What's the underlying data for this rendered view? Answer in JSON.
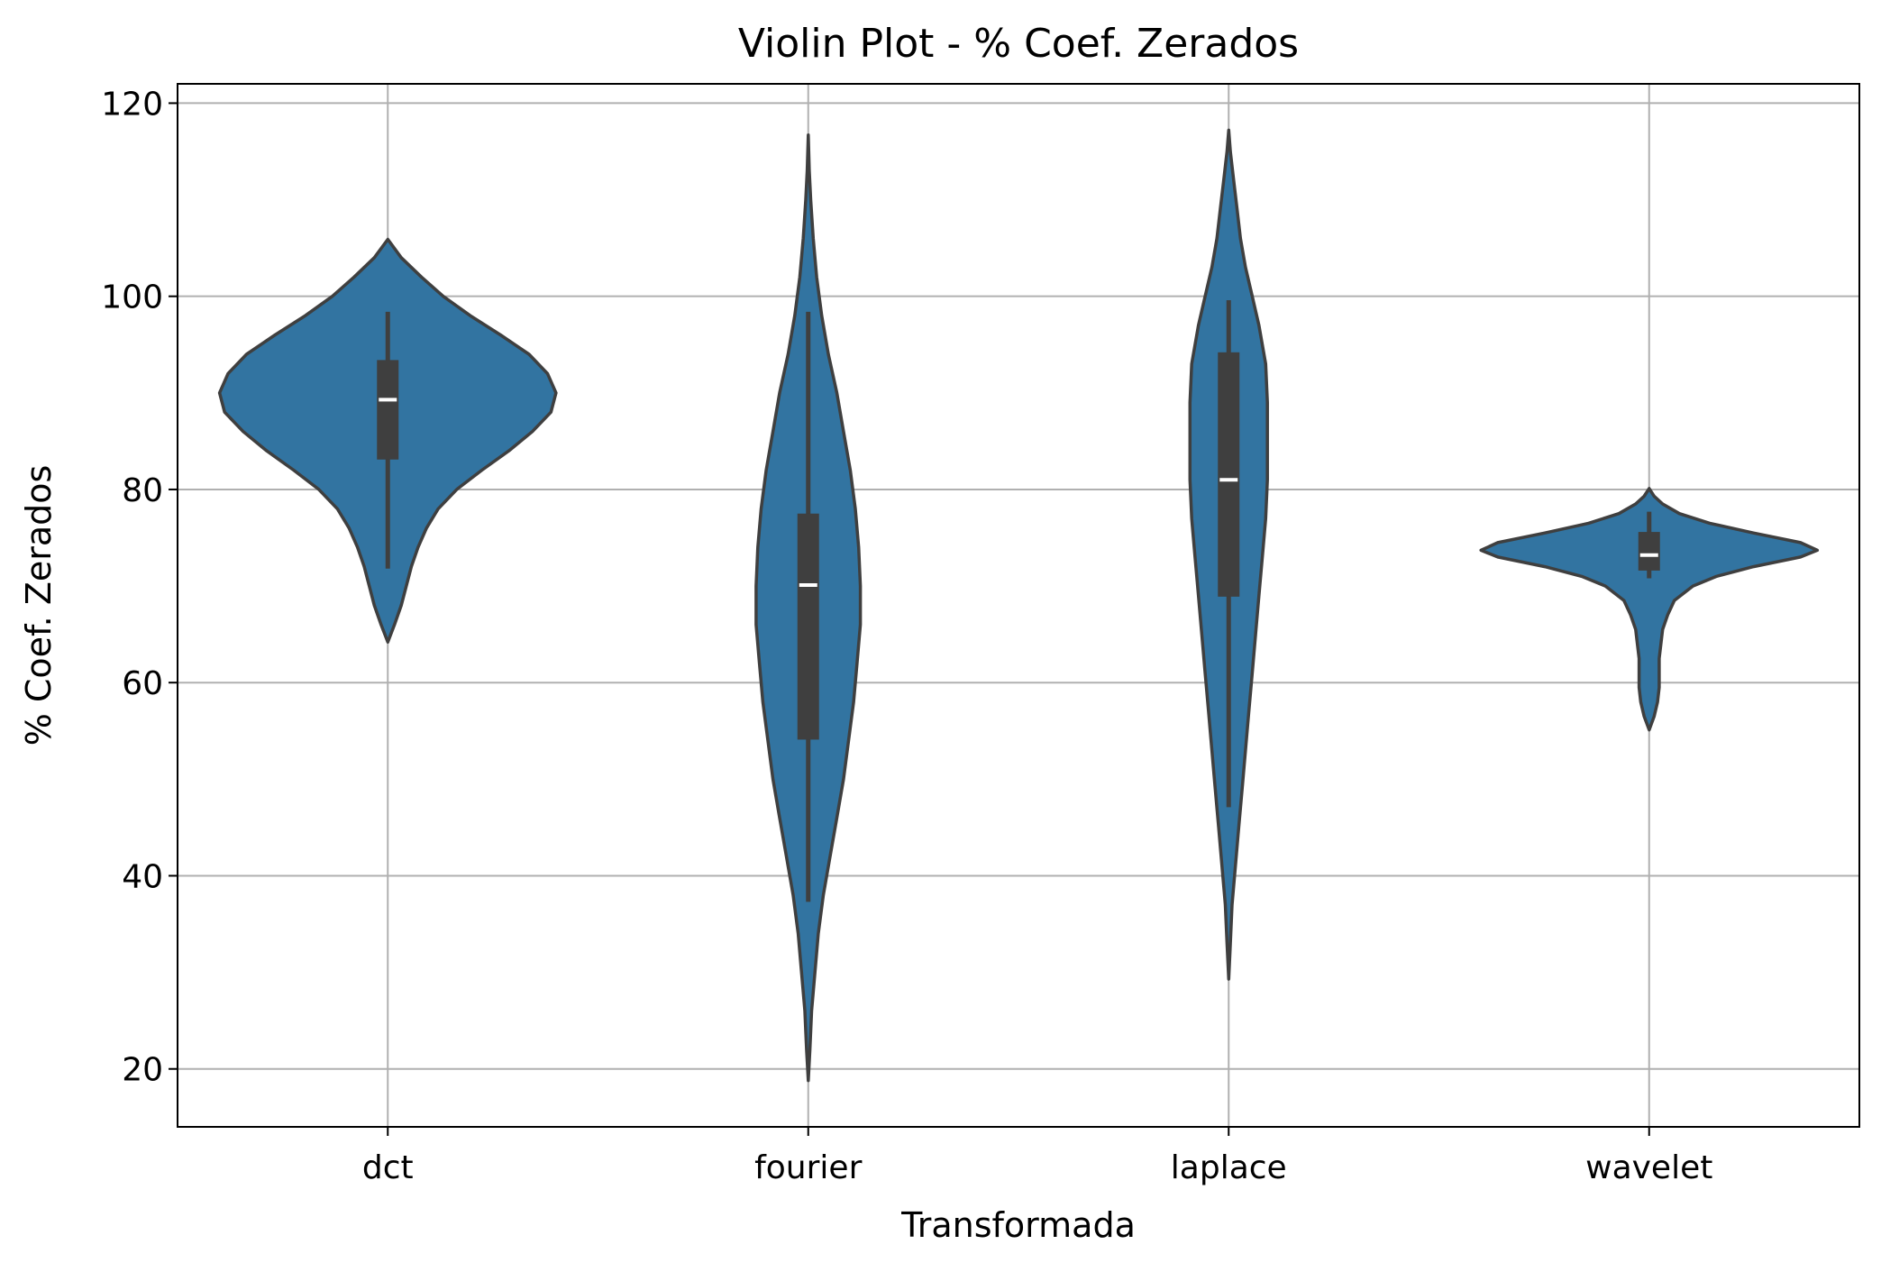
{
  "chart_data": {
    "type": "violin",
    "title": "Violin Plot - % Coef. Zerados",
    "xlabel": "Transformada",
    "ylabel": "% Coef. Zerados",
    "categories": [
      "dct",
      "fourier",
      "laplace",
      "wavelet"
    ],
    "ylim": [
      14,
      122
    ],
    "yticks": [
      20,
      40,
      60,
      80,
      100,
      120
    ],
    "grid": true,
    "colors": {
      "fill": "#3274a1",
      "outline": "#3f3f3f",
      "box": "#3f3f3f",
      "median": "#ffffff",
      "grid": "#b0b0b0",
      "frame": "#000000"
    },
    "violins": [
      {
        "category": "dct",
        "median": 89.3,
        "q1": 83.1,
        "q3": 93.4,
        "whisker_low": 71.8,
        "whisker_high": 98.4,
        "density": [
          [
            64.2,
            0
          ],
          [
            66,
            0.04
          ],
          [
            68,
            0.08
          ],
          [
            70,
            0.11
          ],
          [
            72,
            0.14
          ],
          [
            74,
            0.18
          ],
          [
            76,
            0.23
          ],
          [
            78,
            0.3
          ],
          [
            80,
            0.41
          ],
          [
            82,
            0.56
          ],
          [
            84,
            0.72
          ],
          [
            86,
            0.86
          ],
          [
            88,
            0.97
          ],
          [
            90,
            1.0
          ],
          [
            92,
            0.95
          ],
          [
            94,
            0.84
          ],
          [
            96,
            0.67
          ],
          [
            98,
            0.49
          ],
          [
            100,
            0.33
          ],
          [
            102,
            0.2
          ],
          [
            104,
            0.08
          ],
          [
            105.9,
            0
          ]
        ]
      },
      {
        "category": "fourier",
        "median": 70.1,
        "q1": 54.1,
        "q3": 77.5,
        "whisker_low": 37.3,
        "whisker_high": 98.4,
        "density": [
          [
            18.8,
            0
          ],
          [
            22,
            0.01
          ],
          [
            26,
            0.02
          ],
          [
            30,
            0.04
          ],
          [
            34,
            0.06
          ],
          [
            38,
            0.09
          ],
          [
            42,
            0.13
          ],
          [
            46,
            0.17
          ],
          [
            50,
            0.21
          ],
          [
            54,
            0.24
          ],
          [
            58,
            0.27
          ],
          [
            62,
            0.29
          ],
          [
            66,
            0.31
          ],
          [
            70,
            0.31
          ],
          [
            74,
            0.3
          ],
          [
            78,
            0.28
          ],
          [
            82,
            0.25
          ],
          [
            86,
            0.21
          ],
          [
            90,
            0.17
          ],
          [
            94,
            0.12
          ],
          [
            98,
            0.08
          ],
          [
            102,
            0.05
          ],
          [
            106,
            0.03
          ],
          [
            110,
            0.015
          ],
          [
            113,
            0.006
          ],
          [
            116.7,
            0
          ]
        ]
      },
      {
        "category": "laplace",
        "median": 81.0,
        "q1": 68.9,
        "q3": 94.2,
        "whisker_low": 47.1,
        "whisker_high": 99.6,
        "density": [
          [
            29.3,
            0
          ],
          [
            33,
            0.01
          ],
          [
            37,
            0.02
          ],
          [
            41,
            0.04
          ],
          [
            45,
            0.06
          ],
          [
            49,
            0.08
          ],
          [
            53,
            0.1
          ],
          [
            57,
            0.12
          ],
          [
            61,
            0.14
          ],
          [
            65,
            0.16
          ],
          [
            69,
            0.18
          ],
          [
            73,
            0.2
          ],
          [
            77,
            0.22
          ],
          [
            81,
            0.23
          ],
          [
            85,
            0.23
          ],
          [
            89,
            0.23
          ],
          [
            93,
            0.22
          ],
          [
            97,
            0.18
          ],
          [
            100,
            0.14
          ],
          [
            103,
            0.1
          ],
          [
            106,
            0.07
          ],
          [
            109,
            0.05
          ],
          [
            112,
            0.03
          ],
          [
            115,
            0.01
          ],
          [
            117.2,
            0
          ]
        ]
      },
      {
        "category": "wavelet",
        "median": 73.2,
        "q1": 71.6,
        "q3": 75.6,
        "whisker_low": 70.8,
        "whisker_high": 77.7,
        "density": [
          [
            55.1,
            0
          ],
          [
            56.5,
            0.03
          ],
          [
            58,
            0.05
          ],
          [
            59.5,
            0.06
          ],
          [
            61,
            0.06
          ],
          [
            62.5,
            0.06
          ],
          [
            64,
            0.07
          ],
          [
            65.5,
            0.08
          ],
          [
            67,
            0.11
          ],
          [
            68.5,
            0.15
          ],
          [
            70,
            0.26
          ],
          [
            71,
            0.4
          ],
          [
            72,
            0.62
          ],
          [
            73,
            0.9
          ],
          [
            73.7,
            1.0
          ],
          [
            74.5,
            0.9
          ],
          [
            75.5,
            0.62
          ],
          [
            76.5,
            0.36
          ],
          [
            77.5,
            0.18
          ],
          [
            78.5,
            0.08
          ],
          [
            79.3,
            0.03
          ],
          [
            80.1,
            0
          ]
        ]
      }
    ]
  }
}
